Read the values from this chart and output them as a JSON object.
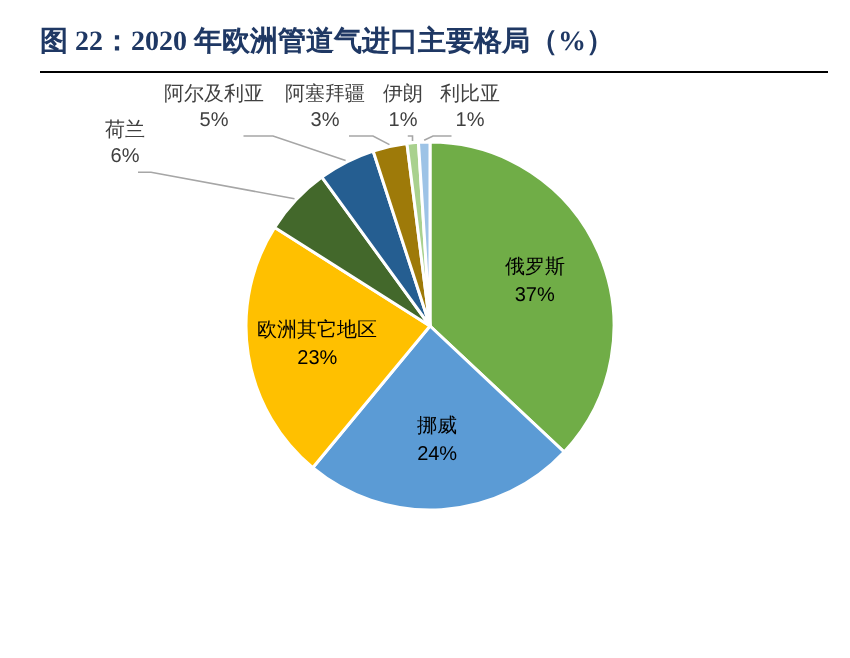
{
  "chart_data": {
    "type": "pie",
    "title": "图 22：2020 年欧洲管道气进口主要格局（%）",
    "categories": [
      "俄罗斯",
      "挪威",
      "欧洲其它地区",
      "荷兰",
      "阿尔及利亚",
      "阿塞拜疆",
      "伊朗",
      "利比亚"
    ],
    "values": [
      37,
      24,
      23,
      6,
      5,
      3,
      1,
      1
    ],
    "colors": [
      "#70ad47",
      "#5b9bd5",
      "#ffc000",
      "#43682b",
      "#255e91",
      "#9e7a09",
      "#a9d18e",
      "#9dc3e6"
    ],
    "value_labels": [
      "37%",
      "24%",
      "23%",
      "6%",
      "5%",
      "3%",
      "1%",
      "1%"
    ]
  }
}
